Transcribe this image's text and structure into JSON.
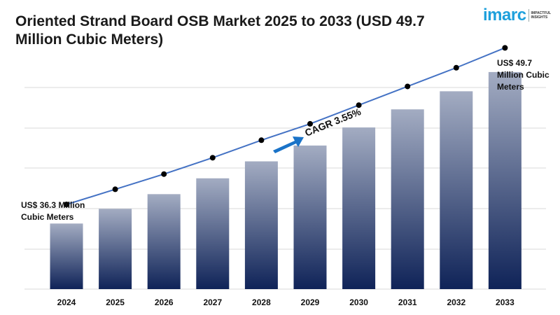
{
  "header": {
    "title": "Oriented Strand Board OSB Market 2025 to 2033 (USD 49.7 Million Cubic Meters)"
  },
  "logo": {
    "word": "imarc",
    "tagline": "IMPACTFUL INSIGHTS"
  },
  "colors": {
    "bar_top": "#a3acc2",
    "bar_bottom": "#0f2358",
    "line": "#4472c4",
    "marker": "#000000",
    "arrow": "#1a73c8",
    "grid": "#d9d9d9"
  },
  "chart_data": {
    "type": "bar",
    "categories": [
      "2024",
      "2025",
      "2026",
      "2027",
      "2028",
      "2029",
      "2030",
      "2031",
      "2032",
      "2033"
    ],
    "series": [
      {
        "values": [
          36.3,
          37.6,
          38.9,
          40.3,
          41.8,
          43.2,
          44.8,
          46.4,
          48.0,
          49.7
        ]
      }
    ],
    "overlay_line": true,
    "ylim": [
      30.5,
      50.5
    ],
    "grid": true,
    "annotations": {
      "start_label": [
        "US$ 36.3 Million",
        "Cubic Meters"
      ],
      "end_label": [
        "US$ 49.7",
        "Million Cubic",
        "Meters"
      ],
      "cagr": "CAGR 3.55%"
    }
  }
}
